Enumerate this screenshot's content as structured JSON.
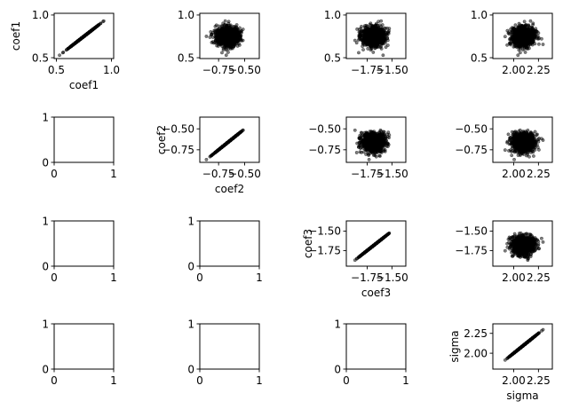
{
  "chart_data": {
    "type": "scatter",
    "layout": "4x4 pair-plot grid",
    "variables": [
      "coef1",
      "coef2",
      "coef3",
      "sigma"
    ],
    "marker_color": "#000000",
    "marker_alpha": 0.5,
    "variable_stats": [
      {
        "name": "coef1",
        "center": 0.75,
        "spread": 0.055,
        "range": [
          0.5,
          1.0
        ]
      },
      {
        "name": "coef2",
        "center": -0.66,
        "spread": 0.055,
        "range": [
          -0.88,
          -0.38
        ]
      },
      {
        "name": "coef3",
        "center": -1.69,
        "spread": 0.055,
        "range": [
          -1.92,
          -1.4
        ]
      },
      {
        "name": "sigma",
        "center": 2.1,
        "spread": 0.055,
        "range": [
          1.83,
          2.35
        ]
      }
    ],
    "panels": [
      {
        "row": 0,
        "col": 0,
        "kind": "diagonal",
        "xvar": "coef1",
        "yvar": "coef1",
        "xlim": [
          0.48,
          1.02
        ],
        "ylim": [
          0.49,
          1.02
        ],
        "xticks": [
          {
            "value": 0.5,
            "label": "0.5"
          },
          {
            "value": 1.0,
            "label": "1.0"
          }
        ],
        "yticks": [
          {
            "value": 0.5,
            "label": "0.5"
          },
          {
            "value": 1.0,
            "label": "1.0"
          }
        ],
        "xlabel": "coef1",
        "ylabel": "coef1"
      },
      {
        "row": 0,
        "col": 1,
        "kind": "scatter",
        "xvar": "coef2",
        "yvar": "coef1",
        "xlim": [
          -0.93,
          -0.36
        ],
        "ylim": [
          0.49,
          1.02
        ],
        "xticks": [
          {
            "value": -0.75,
            "label": "−0.75"
          },
          {
            "value": -0.5,
            "label": "−0.50"
          }
        ],
        "yticks": [
          {
            "value": 0.5,
            "label": "0.5"
          },
          {
            "value": 1.0,
            "label": "1.0"
          }
        ],
        "xlabel": "",
        "ylabel": ""
      },
      {
        "row": 0,
        "col": 2,
        "kind": "scatter",
        "xvar": "coef3",
        "yvar": "coef1",
        "xlim": [
          -1.96,
          -1.36
        ],
        "ylim": [
          0.49,
          1.02
        ],
        "xticks": [
          {
            "value": -1.75,
            "label": "−1.75"
          },
          {
            "value": -1.5,
            "label": "−1.50"
          }
        ],
        "yticks": [
          {
            "value": 0.5,
            "label": "0.5"
          },
          {
            "value": 1.0,
            "label": "1.0"
          }
        ],
        "xlabel": "",
        "ylabel": ""
      },
      {
        "row": 0,
        "col": 3,
        "kind": "scatter",
        "xvar": "sigma",
        "yvar": "coef1",
        "xlim": [
          1.79,
          2.39
        ],
        "ylim": [
          0.49,
          1.02
        ],
        "xticks": [
          {
            "value": 2.0,
            "label": "2.00"
          },
          {
            "value": 2.25,
            "label": "2.25"
          }
        ],
        "yticks": [
          {
            "value": 0.5,
            "label": "0.5"
          },
          {
            "value": 1.0,
            "label": "1.0"
          }
        ],
        "xlabel": "",
        "ylabel": ""
      },
      {
        "row": 1,
        "col": 0,
        "kind": "empty",
        "xlim": [
          0,
          1
        ],
        "ylim": [
          0,
          1
        ],
        "xticks": [
          {
            "value": 0,
            "label": "0"
          },
          {
            "value": 1,
            "label": "1"
          }
        ],
        "yticks": [
          {
            "value": 0,
            "label": "0"
          },
          {
            "value": 1,
            "label": "1"
          }
        ],
        "xlabel": "",
        "ylabel": ""
      },
      {
        "row": 1,
        "col": 1,
        "kind": "diagonal",
        "xvar": "coef2",
        "yvar": "coef2",
        "xlim": [
          -0.93,
          -0.36
        ],
        "ylim": [
          -0.9,
          -0.36
        ],
        "xticks": [
          {
            "value": -0.75,
            "label": "−0.75"
          },
          {
            "value": -0.5,
            "label": "−0.50"
          }
        ],
        "yticks": [
          {
            "value": -0.75,
            "label": "−0.75"
          },
          {
            "value": -0.5,
            "label": "−0.50"
          }
        ],
        "xlabel": "coef2",
        "ylabel": "coef2"
      },
      {
        "row": 1,
        "col": 2,
        "kind": "scatter",
        "xvar": "coef3",
        "yvar": "coef2",
        "xlim": [
          -1.96,
          -1.36
        ],
        "ylim": [
          -0.9,
          -0.36
        ],
        "xticks": [
          {
            "value": -1.75,
            "label": "−1.75"
          },
          {
            "value": -1.5,
            "label": "−1.50"
          }
        ],
        "yticks": [
          {
            "value": -0.75,
            "label": "−0.75"
          },
          {
            "value": -0.5,
            "label": "−0.50"
          }
        ],
        "xlabel": "",
        "ylabel": ""
      },
      {
        "row": 1,
        "col": 3,
        "kind": "scatter",
        "xvar": "sigma",
        "yvar": "coef2",
        "xlim": [
          1.79,
          2.39
        ],
        "ylim": [
          -0.9,
          -0.36
        ],
        "xticks": [
          {
            "value": 2.0,
            "label": "2.00"
          },
          {
            "value": 2.25,
            "label": "2.25"
          }
        ],
        "yticks": [
          {
            "value": -0.75,
            "label": "−0.75"
          },
          {
            "value": -0.5,
            "label": "−0.50"
          }
        ],
        "xlabel": "",
        "ylabel": ""
      },
      {
        "row": 2,
        "col": 0,
        "kind": "empty",
        "xlim": [
          0,
          1
        ],
        "ylim": [
          0,
          1
        ],
        "xticks": [
          {
            "value": 0,
            "label": "0"
          },
          {
            "value": 1,
            "label": "1"
          }
        ],
        "yticks": [
          {
            "value": 0,
            "label": "0"
          },
          {
            "value": 1,
            "label": "1"
          }
        ],
        "xlabel": "",
        "ylabel": ""
      },
      {
        "row": 2,
        "col": 1,
        "kind": "empty",
        "xlim": [
          0,
          1
        ],
        "ylim": [
          0,
          1
        ],
        "xticks": [
          {
            "value": 0,
            "label": "0"
          },
          {
            "value": 1,
            "label": "1"
          }
        ],
        "yticks": [
          {
            "value": 0,
            "label": "0"
          },
          {
            "value": 1,
            "label": "1"
          }
        ],
        "xlabel": "",
        "ylabel": ""
      },
      {
        "row": 2,
        "col": 2,
        "kind": "diagonal",
        "xvar": "coef3",
        "yvar": "coef3",
        "xlim": [
          -1.96,
          -1.36
        ],
        "ylim": [
          -1.95,
          -1.37
        ],
        "xticks": [
          {
            "value": -1.75,
            "label": "−1.75"
          },
          {
            "value": -1.5,
            "label": "−1.50"
          }
        ],
        "yticks": [
          {
            "value": -1.75,
            "label": "−1.75"
          },
          {
            "value": -1.5,
            "label": "−1.50"
          }
        ],
        "xlabel": "coef3",
        "ylabel": "coef3"
      },
      {
        "row": 2,
        "col": 3,
        "kind": "scatter",
        "xvar": "sigma",
        "yvar": "coef3",
        "xlim": [
          1.79,
          2.39
        ],
        "ylim": [
          -1.95,
          -1.37
        ],
        "xticks": [
          {
            "value": 2.0,
            "label": "2.00"
          },
          {
            "value": 2.25,
            "label": "2.25"
          }
        ],
        "yticks": [
          {
            "value": -1.75,
            "label": "−1.75"
          },
          {
            "value": -1.5,
            "label": "−1.50"
          }
        ],
        "xlabel": "",
        "ylabel": ""
      },
      {
        "row": 3,
        "col": 0,
        "kind": "empty",
        "xlim": [
          0,
          1
        ],
        "ylim": [
          0,
          1
        ],
        "xticks": [
          {
            "value": 0,
            "label": "0"
          },
          {
            "value": 1,
            "label": "1"
          }
        ],
        "yticks": [
          {
            "value": 0,
            "label": "0"
          },
          {
            "value": 1,
            "label": "1"
          }
        ],
        "xlabel": "",
        "ylabel": ""
      },
      {
        "row": 3,
        "col": 1,
        "kind": "empty",
        "xlim": [
          0,
          1
        ],
        "ylim": [
          0,
          1
        ],
        "xticks": [
          {
            "value": 0,
            "label": "0"
          },
          {
            "value": 1,
            "label": "1"
          }
        ],
        "yticks": [
          {
            "value": 0,
            "label": "0"
          },
          {
            "value": 1,
            "label": "1"
          }
        ],
        "xlabel": "",
        "ylabel": ""
      },
      {
        "row": 3,
        "col": 2,
        "kind": "empty",
        "xlim": [
          0,
          1
        ],
        "ylim": [
          0,
          1
        ],
        "xticks": [
          {
            "value": 0,
            "label": "0"
          },
          {
            "value": 1,
            "label": "1"
          }
        ],
        "yticks": [
          {
            "value": 0,
            "label": "0"
          },
          {
            "value": 1,
            "label": "1"
          }
        ],
        "xlabel": "",
        "ylabel": ""
      },
      {
        "row": 3,
        "col": 3,
        "kind": "diagonal",
        "xvar": "sigma",
        "yvar": "sigma",
        "xlim": [
          1.79,
          2.39
        ],
        "ylim": [
          1.8,
          2.37
        ],
        "xticks": [
          {
            "value": 2.0,
            "label": "2.00"
          },
          {
            "value": 2.25,
            "label": "2.25"
          }
        ],
        "yticks": [
          {
            "value": 2.0,
            "label": "2.00"
          },
          {
            "value": 2.25,
            "label": "2.25"
          }
        ],
        "xlabel": "sigma",
        "ylabel": "sigma"
      }
    ]
  }
}
